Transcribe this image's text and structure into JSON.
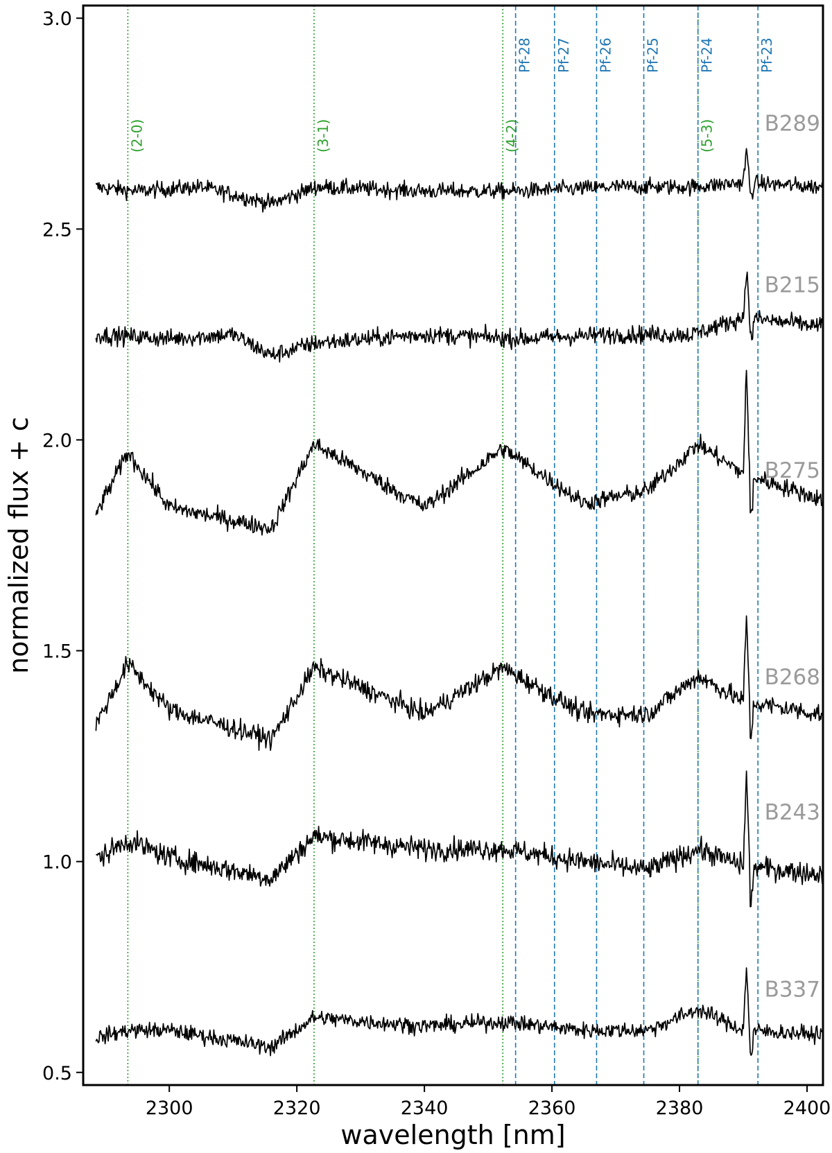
{
  "chart_data": {
    "type": "line",
    "title": "",
    "xlabel": "wavelength [nm]",
    "ylabel": "normalized flux + c",
    "xlim": [
      2286.5,
      2402.5
    ],
    "ylim": [
      0.47,
      3.03
    ],
    "xticks": [
      2300,
      2320,
      2340,
      2360,
      2380,
      2400
    ],
    "yticks": [
      0.5,
      1.0,
      1.5,
      2.0,
      2.5,
      3.0
    ],
    "grid": false,
    "colors": {
      "spectrum": "#000000",
      "co_lines": "#2ca02c",
      "pf_lines": "#1f77b4",
      "series_labels": "#9a9a9a"
    },
    "co_bandheads": [
      {
        "label": "(2-0)",
        "x": 2293.5
      },
      {
        "label": "(3-1)",
        "x": 2322.7
      },
      {
        "label": "(4-2)",
        "x": 2352.3
      },
      {
        "label": "(5-3)",
        "x": 2382.9
      }
    ],
    "pfund_lines": [
      {
        "label": "Pf-28",
        "x": 2354.3
      },
      {
        "label": "Pf-27",
        "x": 2360.4
      },
      {
        "label": "Pf-26",
        "x": 2367.0
      },
      {
        "label": "Pf-25",
        "x": 2374.4
      },
      {
        "label": "Pf-24",
        "x": 2382.9
      },
      {
        "label": "Pf-23",
        "x": 2392.3
      }
    ],
    "series": [
      {
        "name": "B289",
        "offset": 2.6,
        "co_amp": 0.0,
        "noise": 0.018,
        "x": [
          2288,
          2295,
          2305,
          2316,
          2323,
          2340,
          2355,
          2370,
          2382,
          2390,
          2402
        ],
        "y": [
          2.6,
          2.59,
          2.6,
          2.56,
          2.6,
          2.59,
          2.59,
          2.6,
          2.6,
          2.61,
          2.6
        ]
      },
      {
        "name": "B215",
        "offset": 2.25,
        "co_amp": 0.0,
        "noise": 0.02,
        "x": [
          2288,
          2300,
          2310,
          2316,
          2323,
          2340,
          2355,
          2370,
          2382,
          2390,
          2402
        ],
        "y": [
          2.25,
          2.24,
          2.25,
          2.2,
          2.23,
          2.25,
          2.24,
          2.25,
          2.25,
          2.29,
          2.27
        ]
      },
      {
        "name": "B275",
        "offset": 1.81,
        "co_amp": 0.17,
        "noise": 0.02,
        "x": [
          2288,
          2293.5,
          2300,
          2316,
          2322.7,
          2340,
          2352.3,
          2365,
          2375,
          2382.9,
          2390,
          2402
        ],
        "y": [
          1.81,
          1.97,
          1.84,
          1.79,
          1.99,
          1.84,
          1.98,
          1.85,
          1.88,
          1.99,
          1.92,
          1.86
        ]
      },
      {
        "name": "B268",
        "offset": 1.32,
        "co_amp": 0.14,
        "noise": 0.022,
        "x": [
          2288,
          2293.5,
          2300,
          2316,
          2322.7,
          2340,
          2352.3,
          2365,
          2375,
          2382.9,
          2390,
          2402
        ],
        "y": [
          1.31,
          1.47,
          1.36,
          1.29,
          1.46,
          1.35,
          1.46,
          1.35,
          1.35,
          1.44,
          1.38,
          1.35
        ]
      },
      {
        "name": "B243",
        "offset": 1.0,
        "co_amp": 0.05,
        "noise": 0.025,
        "x": [
          2288,
          2293.5,
          2300,
          2316,
          2322.7,
          2340,
          2352.3,
          2365,
          2375,
          2382.9,
          2390,
          2402
        ],
        "y": [
          1.0,
          1.05,
          1.01,
          0.96,
          1.06,
          1.03,
          1.03,
          1.0,
          0.98,
          1.03,
          0.99,
          0.97
        ]
      },
      {
        "name": "B337",
        "offset": 0.58,
        "co_amp": 0.02,
        "noise": 0.018,
        "x": [
          2288,
          2293.5,
          2300,
          2316,
          2322.7,
          2340,
          2352.3,
          2365,
          2375,
          2382.9,
          2390,
          2402
        ],
        "y": [
          0.58,
          0.6,
          0.6,
          0.56,
          0.63,
          0.61,
          0.62,
          0.6,
          0.6,
          0.65,
          0.6,
          0.59
        ]
      }
    ],
    "emission_spike": {
      "x": 2390.5,
      "amp": [
        0.08,
        0.12,
        0.25,
        0.2,
        0.22,
        0.15
      ]
    },
    "legend": "series names printed at right end of each spectrum"
  }
}
